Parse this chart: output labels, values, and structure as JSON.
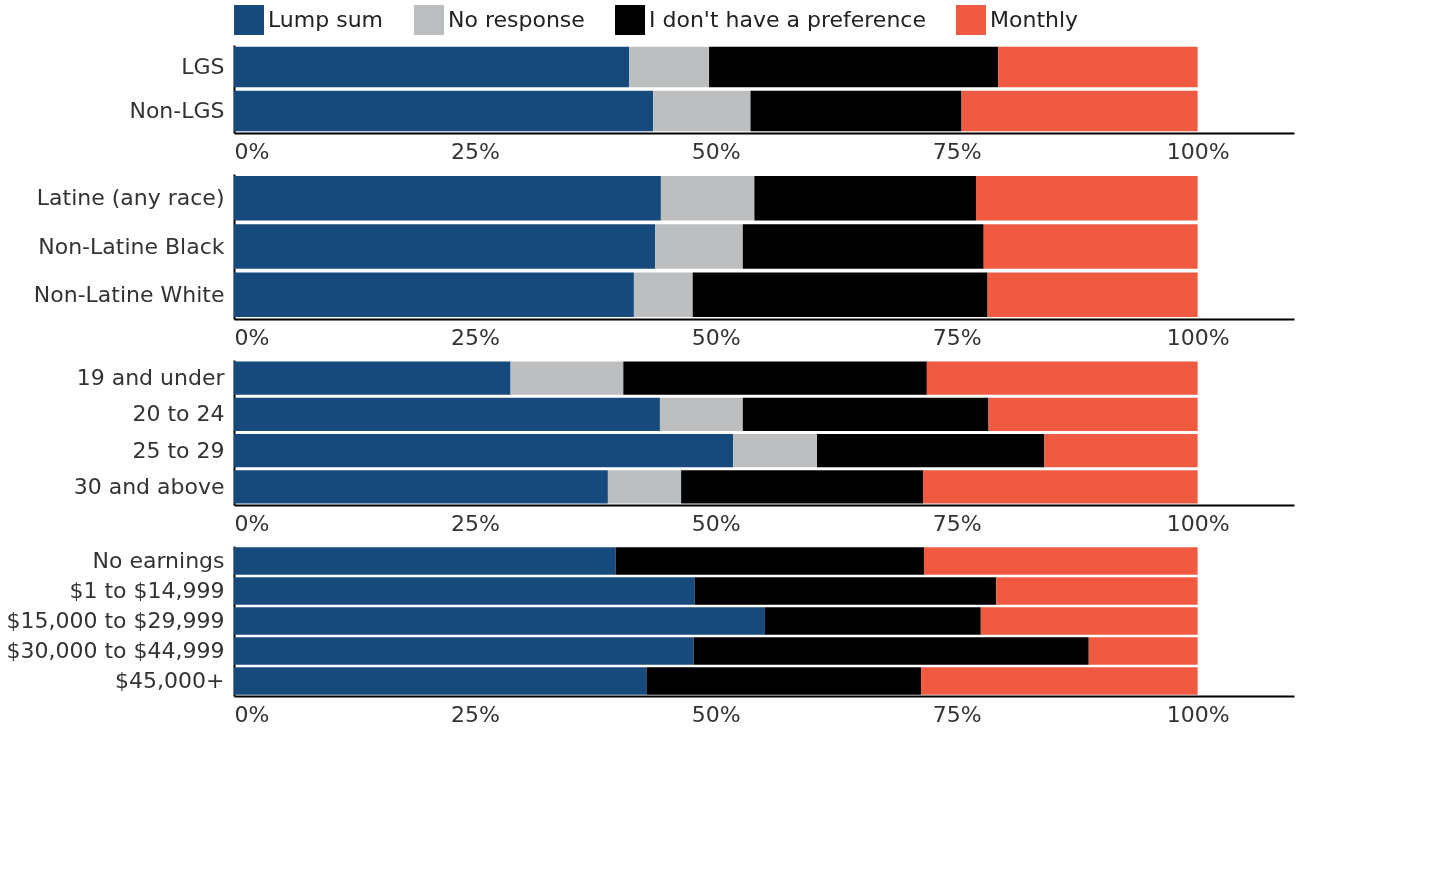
{
  "chart_data": [
    {
      "type": "bar",
      "orientation": "horizontal",
      "stacked": true,
      "legend": "top",
      "categories": [
        "LGS",
        "Non-LGS"
      ],
      "xlim": [
        0,
        110
      ],
      "xticks": [
        {
          "value": 0,
          "label": "0%"
        },
        {
          "value": 25,
          "label": "25%"
        },
        {
          "value": 50,
          "label": "50%"
        },
        {
          "value": 75,
          "label": "75%"
        },
        {
          "value": 100,
          "label": "100%"
        }
      ],
      "series": [
        {
          "name": "Lump sum",
          "color": "#174a7c",
          "values": [
            41.0,
            43.5
          ]
        },
        {
          "name": "No response",
          "color": "#bcbec0",
          "values": [
            8.3,
            10.1
          ]
        },
        {
          "name": "I don't have a preference",
          "color": "#000000",
          "values": [
            30.0,
            21.9
          ]
        },
        {
          "name": "Monthly",
          "color": "#f05a40",
          "values": [
            20.7,
            24.5
          ]
        }
      ]
    },
    {
      "type": "bar",
      "orientation": "horizontal",
      "stacked": true,
      "categories": [
        "Latine (any race)",
        "Non-Latine Black",
        "Non-Latine White"
      ],
      "xlim": [
        0,
        110
      ],
      "xticks": [
        {
          "value": 0,
          "label": "0%"
        },
        {
          "value": 25,
          "label": "25%"
        },
        {
          "value": 50,
          "label": "50%"
        },
        {
          "value": 75,
          "label": "75%"
        },
        {
          "value": 100,
          "label": "100%"
        }
      ],
      "series": [
        {
          "color": "#174a7c",
          "values": [
            44.3,
            43.7,
            41.5
          ]
        },
        {
          "color": "#bcbec0",
          "values": [
            9.7,
            9.1,
            6.1
          ]
        },
        {
          "color": "#000000",
          "values": [
            23.0,
            25.0,
            30.6
          ]
        },
        {
          "color": "#f05a40",
          "values": [
            23.0,
            22.2,
            21.8
          ]
        }
      ]
    },
    {
      "type": "bar",
      "orientation": "horizontal",
      "stacked": true,
      "categories": [
        "19 and under",
        "20 to 24",
        "25 to 29",
        "30 and above"
      ],
      "xlim": [
        0,
        110
      ],
      "xticks": [
        {
          "value": 0,
          "label": "0%"
        },
        {
          "value": 25,
          "label": "25%"
        },
        {
          "value": 50,
          "label": "50%"
        },
        {
          "value": 75,
          "label": "75%"
        },
        {
          "value": 100,
          "label": "100%"
        }
      ],
      "series": [
        {
          "color": "#174a7c",
          "values": [
            28.7,
            44.2,
            51.8,
            38.8
          ]
        },
        {
          "color": "#bcbec0",
          "values": [
            11.7,
            8.6,
            8.7,
            7.6
          ]
        },
        {
          "color": "#000000",
          "values": [
            31.5,
            25.5,
            23.6,
            25.1
          ]
        },
        {
          "color": "#f05a40",
          "values": [
            28.1,
            21.7,
            15.9,
            28.5
          ]
        }
      ]
    },
    {
      "type": "bar",
      "orientation": "horizontal",
      "stacked": true,
      "categories": [
        "No earnings",
        "$1 to $14,999",
        "$15,000 to $29,999",
        "$30,000 to $44,999",
        "$45,000+"
      ],
      "xlim": [
        0,
        110
      ],
      "xticks": [
        {
          "value": 0,
          "label": "0%"
        },
        {
          "value": 25,
          "label": "25%"
        },
        {
          "value": 50,
          "label": "50%"
        },
        {
          "value": 75,
          "label": "75%"
        },
        {
          "value": 100,
          "label": "100%"
        }
      ],
      "series": [
        {
          "color": "#174a7c",
          "values": [
            39.6,
            47.8,
            55.1,
            47.7,
            42.8
          ]
        },
        {
          "color": "#000000",
          "values": [
            32.0,
            31.3,
            22.4,
            41.0,
            28.5
          ]
        },
        {
          "color": "#f05a40",
          "values": [
            28.4,
            20.9,
            22.5,
            11.3,
            28.7
          ]
        }
      ]
    }
  ]
}
